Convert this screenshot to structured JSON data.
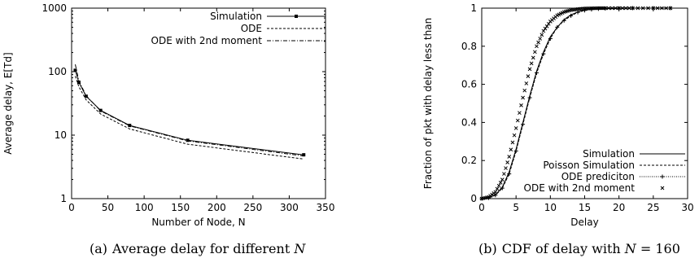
{
  "chart_data": [
    {
      "type": "line",
      "xlabel": "Number of Node, N",
      "ylabel": "Average delay, E[Td]",
      "xlim": [
        0,
        350
      ],
      "ylim": [
        1,
        1000
      ],
      "yscale": "log",
      "xticks": [
        0,
        50,
        100,
        150,
        200,
        250,
        300,
        350
      ],
      "yticks": [
        1,
        10,
        100,
        1000
      ],
      "ytick_labels": [
        "1",
        "10",
        "100",
        "1000"
      ],
      "legend_placement": "top-right",
      "grid": false,
      "series": [
        {
          "name": "Simulation",
          "style": "solid-square-markers",
          "x": [
            5,
            10,
            20,
            40,
            80,
            160,
            320
          ],
          "y": [
            105,
            68,
            41,
            24.5,
            14.2,
            8.3,
            4.9
          ]
        },
        {
          "name": "ODE",
          "style": "dashed",
          "x": [
            5,
            10,
            20,
            40,
            80,
            160,
            320
          ],
          "y": [
            85,
            58,
            36,
            21.5,
            12.5,
            7.2,
            4.2
          ]
        },
        {
          "name": "ODE with 2nd moment",
          "style": "dash-dot",
          "x": [
            5,
            10,
            20,
            40,
            80,
            160,
            320
          ],
          "y": [
            130,
            72,
            42,
            24.0,
            14.0,
            8.1,
            4.7
          ]
        }
      ],
      "caption": {
        "tag": "(a)",
        "text": "Average delay for different ",
        "var": "N"
      }
    },
    {
      "type": "line",
      "xlabel": "Delay",
      "ylabel": "Fraction of pkt with delay less than",
      "xlim": [
        0,
        30
      ],
      "ylim": [
        0,
        1
      ],
      "xticks": [
        0,
        5,
        10,
        15,
        20,
        25,
        30
      ],
      "yticks": [
        0,
        0.2,
        0.4,
        0.6,
        0.8,
        1
      ],
      "ytick_labels": [
        "0",
        "0.2",
        "0.4",
        "0.6",
        "0.8",
        "1"
      ],
      "legend_placement": "bottom-right",
      "grid": false,
      "series": [
        {
          "name": "Simulation",
          "style": "solid",
          "x": [
            0,
            1,
            2,
            3,
            4,
            5,
            6,
            7,
            8,
            9,
            10,
            11,
            12,
            13,
            14,
            15,
            16,
            17,
            18,
            20,
            22,
            25,
            27.5
          ],
          "y": [
            0,
            0.005,
            0.02,
            0.06,
            0.14,
            0.26,
            0.4,
            0.54,
            0.67,
            0.77,
            0.85,
            0.9,
            0.94,
            0.965,
            0.98,
            0.99,
            0.994,
            0.997,
            0.998,
            0.999,
            1,
            1,
            1
          ]
        },
        {
          "name": "Poisson Simulation",
          "style": "dashed",
          "x": [
            0,
            1,
            2,
            3,
            4,
            5,
            6,
            7,
            8,
            9,
            10,
            11,
            12,
            13,
            14,
            15,
            16,
            17,
            18,
            20,
            22,
            25,
            27.5
          ],
          "y": [
            0,
            0.004,
            0.018,
            0.055,
            0.13,
            0.25,
            0.39,
            0.53,
            0.66,
            0.76,
            0.84,
            0.9,
            0.935,
            0.96,
            0.978,
            0.988,
            0.993,
            0.996,
            0.998,
            0.999,
            1,
            1,
            1
          ]
        },
        {
          "name": "ODE prediciton",
          "style": "dotted-plus-markers",
          "x": [
            0,
            1,
            2,
            3,
            4,
            5,
            6,
            7,
            8,
            9,
            10,
            11,
            12,
            13,
            14,
            15,
            16,
            17,
            18,
            20,
            22,
            25,
            27.5
          ],
          "y": [
            0,
            0.004,
            0.018,
            0.055,
            0.13,
            0.25,
            0.39,
            0.53,
            0.66,
            0.76,
            0.84,
            0.9,
            0.935,
            0.96,
            0.978,
            0.988,
            0.993,
            0.996,
            0.998,
            0.999,
            1,
            1,
            1
          ]
        },
        {
          "name": "ODE with 2nd moment",
          "style": "x-markers",
          "x": [
            0,
            1,
            2,
            3,
            4,
            5,
            6,
            7,
            8,
            9,
            10,
            11,
            12,
            13,
            14,
            15,
            16,
            17,
            18,
            20,
            22,
            25,
            27.5
          ],
          "y": [
            0,
            0.008,
            0.035,
            0.1,
            0.22,
            0.37,
            0.53,
            0.68,
            0.8,
            0.88,
            0.93,
            0.962,
            0.98,
            0.99,
            0.995,
            0.998,
            0.999,
            1,
            1,
            1,
            1,
            1,
            1
          ]
        }
      ],
      "caption": {
        "tag": "(b)",
        "text": "CDF of delay with ",
        "var": "N",
        "tail": " = 160"
      }
    }
  ]
}
